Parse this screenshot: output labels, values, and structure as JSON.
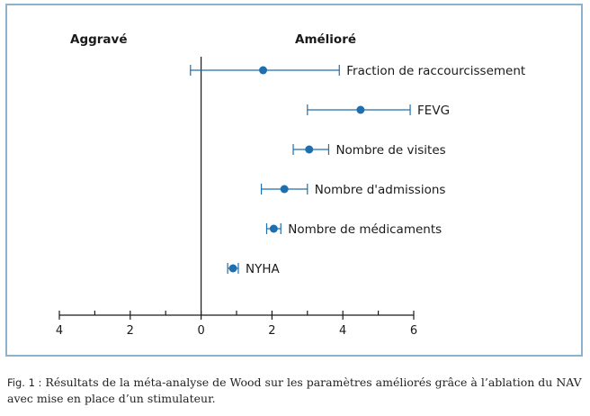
{
  "chart_data": {
    "type": "scatter",
    "subtype": "forest-plot",
    "left_header": "Aggravé",
    "right_header": "Amélioré",
    "xlim": [
      -4,
      6
    ],
    "x_ticks_major": [
      -4,
      -2,
      0,
      2,
      4,
      6
    ],
    "x_tick_labels": [
      "4",
      "2",
      "0",
      "2",
      "4",
      "6"
    ],
    "x_ticks_minor": [
      -3,
      -1,
      1,
      3,
      5
    ],
    "series": [
      {
        "points": [
          {
            "label": "Fraction de raccourcissement",
            "x": 1.75,
            "low": -0.3,
            "high": 3.9
          },
          {
            "label": "FEVG",
            "x": 4.5,
            "low": 3.0,
            "high": 5.9
          },
          {
            "label": "Nombre de visites",
            "x": 3.05,
            "low": 2.6,
            "high": 3.6
          },
          {
            "label": "Nombre d'admissions",
            "x": 2.35,
            "low": 1.7,
            "high": 3.0
          },
          {
            "label": "Nombre de médicaments",
            "x": 2.05,
            "low": 1.85,
            "high": 2.25
          },
          {
            "label": "NYHA",
            "x": 0.9,
            "low": 0.75,
            "high": 1.05
          }
        ]
      }
    ],
    "point_color": "#1f6fae",
    "axis_color": "#1a1a1a"
  },
  "caption": {
    "lead": "Fig. 1 :",
    "text": "Résultats de la méta-analyse de Wood sur les paramètres améliorés grâce à l’ablation du NAV avec mise en place d’un stimulateur."
  }
}
